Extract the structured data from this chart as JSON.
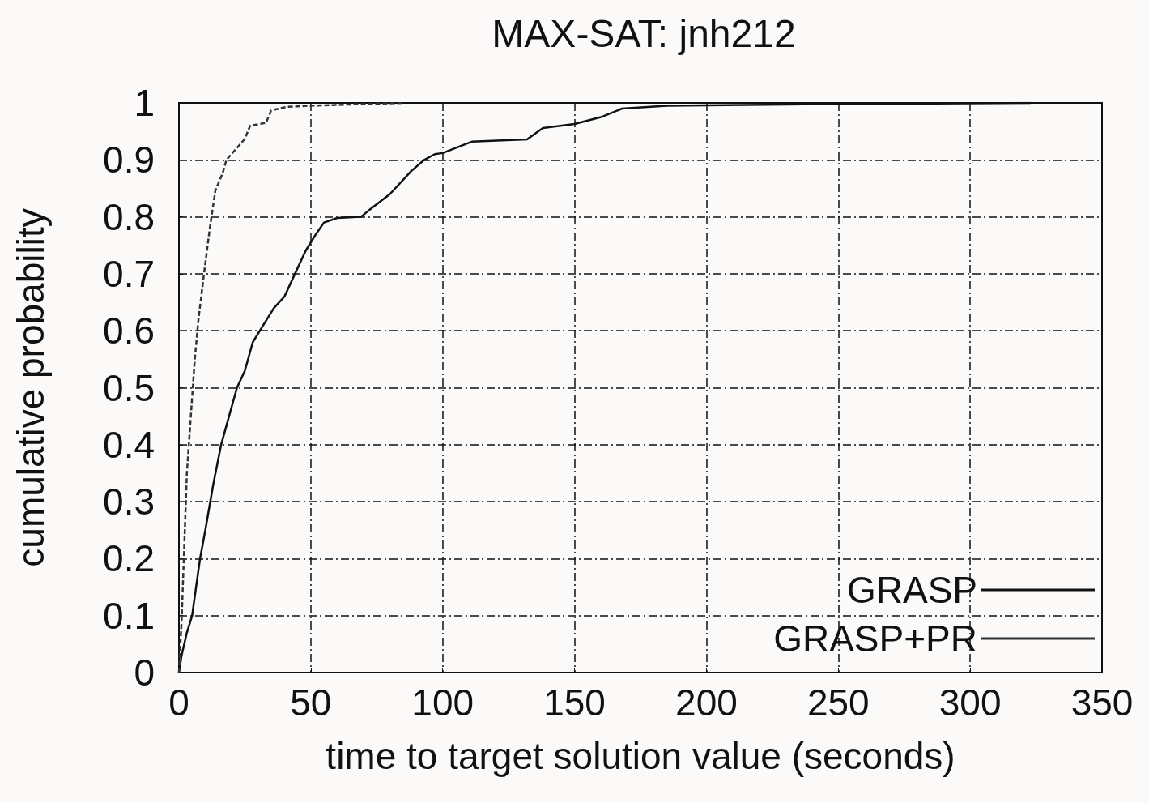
{
  "chart_data": {
    "type": "line",
    "title": "MAX-SAT: jnh212",
    "xlabel": "time to target solution value (seconds)",
    "ylabel": "cumulative probability",
    "xlim": [
      0,
      350
    ],
    "xticks": [
      0,
      50,
      100,
      150,
      200,
      250,
      300,
      350
    ],
    "ylim": [
      0,
      1
    ],
    "yticks": [
      0,
      0.1,
      0.2,
      0.3,
      0.4,
      0.5,
      0.6,
      0.7,
      0.8,
      0.9,
      1
    ],
    "grid": true,
    "legend": "bottom right",
    "marker": "none",
    "series": [
      {
        "name": "GRASP",
        "color": "#111111",
        "line_style": "solid",
        "x": [
          0,
          1,
          3,
          5,
          8,
          10,
          13,
          16,
          19,
          22,
          25,
          28,
          32,
          36,
          40,
          44,
          48,
          52,
          55,
          60,
          69,
          73,
          80,
          88,
          93,
          97,
          100,
          111,
          132,
          138,
          150,
          160,
          168,
          185,
          250,
          323
        ],
        "values": [
          0,
          0.03,
          0.07,
          0.1,
          0.2,
          0.25,
          0.33,
          0.4,
          0.45,
          0.5,
          0.53,
          0.58,
          0.61,
          0.64,
          0.66,
          0.7,
          0.74,
          0.77,
          0.79,
          0.798,
          0.8,
          0.815,
          0.84,
          0.88,
          0.9,
          0.91,
          0.912,
          0.932,
          0.936,
          0.956,
          0.963,
          0.975,
          0.99,
          0.995,
          0.998,
          1
        ]
      },
      {
        "name": "GRASP+PR",
        "color": "#333333",
        "line_style": "dashed",
        "x": [
          0,
          1,
          3,
          6,
          7.4,
          9.5,
          11.7,
          13.8,
          16.6,
          18,
          25,
          27,
          33,
          35,
          41,
          49,
          85
        ],
        "values": [
          0,
          0.09,
          0.35,
          0.55,
          0.62,
          0.7,
          0.78,
          0.846,
          0.877,
          0.9,
          0.937,
          0.96,
          0.965,
          0.987,
          0.993,
          0.995,
          1
        ]
      }
    ]
  }
}
